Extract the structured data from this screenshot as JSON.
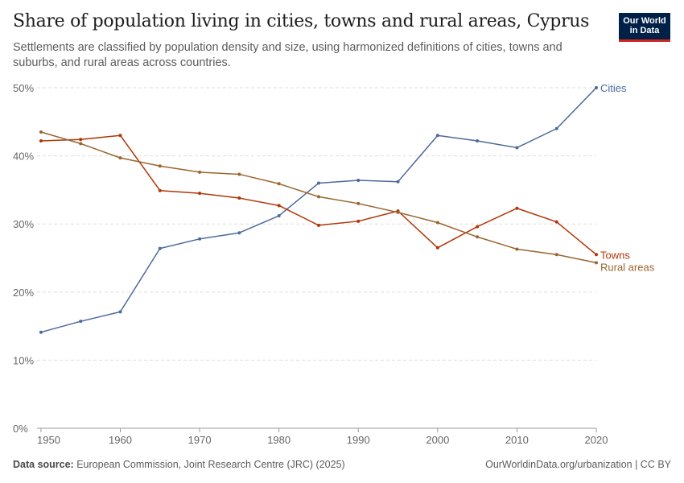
{
  "header": {
    "title": "Share of population living in cities, towns and rural areas, Cyprus",
    "subtitle": "Settlements are classified by population density and size, using harmonized definitions of cities, towns and suburbs, and rural areas across countries."
  },
  "logo": {
    "line1": "Our World",
    "line2": "in Data",
    "bg": "#002147",
    "accent": "#ce261e"
  },
  "footer": {
    "source_label": "Data source:",
    "source_text": "European Commission, Joint Research Centre (JRC) (2025)",
    "right_text": "OurWorldinData.org/urbanization | CC BY"
  },
  "chart_data": {
    "type": "line",
    "x": [
      1950,
      1955,
      1960,
      1965,
      1970,
      1975,
      1980,
      1985,
      1990,
      1995,
      2000,
      2005,
      2010,
      2015,
      2020
    ],
    "xlim": [
      1949.5,
      2020
    ],
    "ylim": [
      0,
      50
    ],
    "x_ticks": [
      "1950",
      "1960",
      "1970",
      "1980",
      "1990",
      "2000",
      "2010",
      "2020"
    ],
    "y_ticks": [
      "0%",
      "10%",
      "20%",
      "30%",
      "40%",
      "50%"
    ],
    "grid": "horizontal dashed",
    "legend": "line-end labels",
    "series": [
      {
        "name": "Cities",
        "color": "#4c6a9c",
        "values": [
          14.1,
          15.7,
          17.1,
          26.4,
          27.8,
          28.7,
          31.2,
          36.0,
          36.4,
          36.2,
          43.0,
          42.2,
          41.2,
          44.0,
          50.0
        ]
      },
      {
        "name": "Towns",
        "color": "#b13507",
        "values": [
          42.2,
          42.4,
          43.0,
          34.9,
          34.5,
          33.8,
          32.7,
          29.8,
          30.4,
          31.9,
          26.5,
          29.6,
          32.3,
          30.3,
          25.5
        ]
      },
      {
        "name": "Rural areas",
        "color": "#9a652e",
        "values": [
          43.5,
          41.8,
          39.7,
          38.5,
          37.6,
          37.3,
          35.9,
          34.0,
          33.0,
          31.7,
          30.2,
          28.1,
          26.3,
          25.5,
          24.3
        ]
      }
    ]
  }
}
